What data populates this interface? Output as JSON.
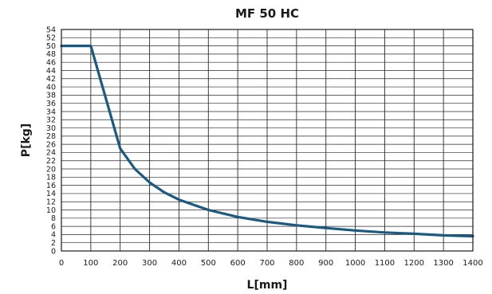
{
  "chart_data": {
    "type": "line",
    "title": "MF 50 HC",
    "xlabel": "L[mm]",
    "ylabel": "P[kg]",
    "xlim": [
      0,
      1400
    ],
    "ylim": [
      0,
      54
    ],
    "x_ticks": [
      0,
      100,
      200,
      300,
      400,
      500,
      600,
      700,
      800,
      900,
      1000,
      1100,
      1200,
      1300,
      1400
    ],
    "y_ticks": [
      0,
      2,
      4,
      6,
      8,
      10,
      12,
      14,
      16,
      18,
      20,
      22,
      24,
      26,
      28,
      30,
      32,
      34,
      36,
      38,
      40,
      42,
      44,
      46,
      48,
      50,
      52,
      54
    ],
    "grid": true,
    "series": [
      {
        "color": "#1a5a82",
        "x": [
          0,
          100,
          200,
          250,
          300,
          350,
          400,
          500,
          600,
          700,
          800,
          900,
          1000,
          1100,
          1200,
          1300,
          1400
        ],
        "y": [
          50,
          50,
          25,
          20,
          16.7,
          14.3,
          12.5,
          10,
          8.3,
          7.1,
          6.25,
          5.6,
          5,
          4.5,
          4.2,
          3.8,
          3.6
        ]
      }
    ]
  }
}
